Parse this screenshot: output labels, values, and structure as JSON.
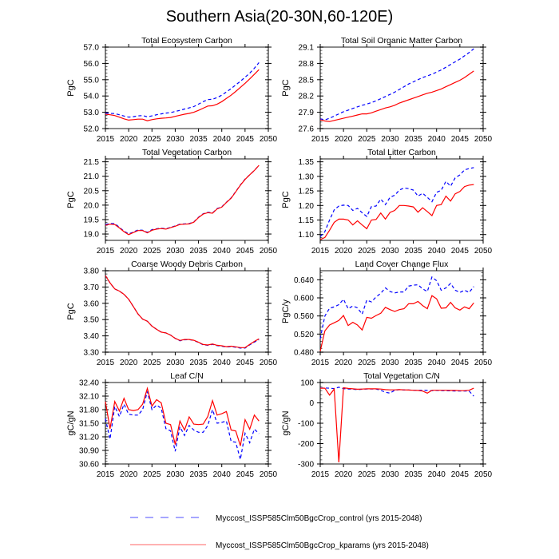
{
  "title": "Southern Asia(20-30N,60-120E)",
  "colors": {
    "control": "#0000ff",
    "kparams": "#ff0000",
    "frame": "#000000"
  },
  "legend": [
    {
      "label": "Myccost_ISSP585Clm50BgcCrop_control (yrs 2015-2048)",
      "style": "dashed",
      "color": "#0000ff"
    },
    {
      "label": "Myccost_ISSP585Clm50BgcCrop_kparams (yrs 2015-2048)",
      "style": "solid",
      "color": "#ff0000"
    }
  ],
  "chart_data": [
    {
      "type": "line",
      "title": "Total Ecosystem Carbon",
      "ylabel": "PgC",
      "xlim": [
        2015,
        2050
      ],
      "xticks": [
        2015,
        2020,
        2025,
        2030,
        2035,
        2040,
        2045,
        2050
      ],
      "ylim": [
        52.0,
        57.0
      ],
      "yticks": [
        "52.0",
        "53.0",
        "54.0",
        "55.0",
        "56.0",
        "57.0"
      ],
      "x": [
        2015,
        2016,
        2017,
        2018,
        2019,
        2020,
        2021,
        2022,
        2023,
        2024,
        2025,
        2026,
        2027,
        2028,
        2029,
        2030,
        2031,
        2032,
        2033,
        2034,
        2035,
        2036,
        2037,
        2038,
        2039,
        2040,
        2041,
        2042,
        2043,
        2044,
        2045,
        2046,
        2047,
        2048
      ],
      "series": [
        {
          "name": "control",
          "values": [
            52.95,
            52.93,
            52.92,
            52.85,
            52.77,
            52.7,
            52.73,
            52.78,
            52.8,
            52.72,
            52.78,
            52.85,
            52.9,
            52.95,
            52.98,
            53.05,
            53.12,
            53.2,
            53.27,
            53.35,
            53.5,
            53.65,
            53.78,
            53.8,
            53.9,
            54.05,
            54.25,
            54.45,
            54.68,
            54.9,
            55.15,
            55.4,
            55.7,
            56.05
          ]
        },
        {
          "name": "kparams",
          "values": [
            52.88,
            52.85,
            52.8,
            52.7,
            52.6,
            52.52,
            52.55,
            52.58,
            52.58,
            52.48,
            52.55,
            52.6,
            52.63,
            52.65,
            52.68,
            52.75,
            52.82,
            52.88,
            52.93,
            53.0,
            53.12,
            53.25,
            53.38,
            53.4,
            53.5,
            53.65,
            53.85,
            54.05,
            54.28,
            54.53,
            54.78,
            55.05,
            55.33,
            55.62
          ]
        }
      ]
    },
    {
      "type": "line",
      "title": "Total Soil Organic Matter Carbon",
      "ylabel": "PgC",
      "xlim": [
        2015,
        2050
      ],
      "xticks": [
        2015,
        2020,
        2025,
        2030,
        2035,
        2040,
        2045,
        2050
      ],
      "ylim": [
        27.6,
        29.1
      ],
      "yticks": [
        "27.6",
        "27.9",
        "28.2",
        "28.5",
        "28.8",
        "29.1"
      ],
      "x": [
        2015,
        2016,
        2017,
        2018,
        2019,
        2020,
        2021,
        2022,
        2023,
        2024,
        2025,
        2026,
        2027,
        2028,
        2029,
        2030,
        2031,
        2032,
        2033,
        2034,
        2035,
        2036,
        2037,
        2038,
        2039,
        2040,
        2041,
        2042,
        2043,
        2044,
        2045,
        2046,
        2047,
        2048
      ],
      "series": [
        {
          "name": "control",
          "values": [
            27.78,
            27.76,
            27.79,
            27.83,
            27.87,
            27.91,
            27.94,
            27.97,
            28.0,
            28.03,
            28.05,
            28.08,
            28.11,
            28.15,
            28.19,
            28.23,
            28.27,
            28.32,
            28.37,
            28.42,
            28.46,
            28.5,
            28.54,
            28.57,
            28.6,
            28.64,
            28.68,
            28.73,
            28.78,
            28.83,
            28.88,
            28.94,
            29.0,
            29.07
          ]
        },
        {
          "name": "kparams",
          "values": [
            27.76,
            27.74,
            27.73,
            27.75,
            27.77,
            27.79,
            27.81,
            27.83,
            27.85,
            27.87,
            27.87,
            27.89,
            27.92,
            27.95,
            27.98,
            28.0,
            28.03,
            28.07,
            28.1,
            28.13,
            28.16,
            28.19,
            28.22,
            28.25,
            28.27,
            28.3,
            28.33,
            28.37,
            28.41,
            28.45,
            28.49,
            28.54,
            28.6,
            28.66
          ]
        }
      ]
    },
    {
      "type": "line",
      "title": "Total Vegetation Carbon",
      "ylabel": "PgC",
      "xlim": [
        2015,
        2050
      ],
      "xticks": [
        2015,
        2020,
        2025,
        2030,
        2035,
        2040,
        2045,
        2050
      ],
      "ylim": [
        18.78,
        21.6
      ],
      "yticks": [
        "19.0",
        "19.5",
        "20.0",
        "20.5",
        "21.0",
        "21.5"
      ],
      "x": [
        2015,
        2016,
        2017,
        2018,
        2019,
        2020,
        2021,
        2022,
        2023,
        2024,
        2025,
        2026,
        2027,
        2028,
        2029,
        2030,
        2031,
        2032,
        2033,
        2034,
        2035,
        2036,
        2037,
        2038,
        2039,
        2040,
        2041,
        2042,
        2043,
        2044,
        2045,
        2046,
        2047,
        2048
      ],
      "series": [
        {
          "name": "control",
          "values": [
            19.33,
            19.36,
            19.36,
            19.23,
            19.1,
            19.0,
            19.07,
            19.14,
            19.13,
            19.06,
            19.15,
            19.18,
            19.2,
            19.18,
            19.23,
            19.28,
            19.34,
            19.35,
            19.36,
            19.42,
            19.58,
            19.7,
            19.75,
            19.73,
            19.88,
            19.94,
            20.1,
            20.25,
            20.47,
            20.7,
            20.9,
            21.05,
            21.2,
            21.38
          ]
        },
        {
          "name": "kparams",
          "values": [
            19.3,
            19.34,
            19.33,
            19.21,
            19.08,
            18.98,
            19.05,
            19.12,
            19.12,
            19.04,
            19.13,
            19.17,
            19.19,
            19.17,
            19.22,
            19.27,
            19.33,
            19.34,
            19.35,
            19.41,
            19.57,
            19.69,
            19.74,
            19.72,
            19.87,
            19.93,
            20.09,
            20.24,
            20.46,
            20.69,
            20.89,
            21.05,
            21.2,
            21.38
          ]
        }
      ]
    },
    {
      "type": "line",
      "title": "Total Litter Carbon",
      "ylabel": "PgC",
      "xlim": [
        2015,
        2050
      ],
      "xticks": [
        2015,
        2020,
        2025,
        2030,
        2035,
        2040,
        2045,
        2050
      ],
      "ylim": [
        1.08,
        1.36
      ],
      "yticks": [
        "1.10",
        "1.15",
        "1.20",
        "1.25",
        "1.30",
        "1.35"
      ],
      "x": [
        2015,
        2016,
        2017,
        2018,
        2019,
        2020,
        2021,
        2022,
        2023,
        2024,
        2025,
        2026,
        2027,
        2028,
        2029,
        2030,
        2031,
        2032,
        2033,
        2034,
        2035,
        2036,
        2037,
        2038,
        2039,
        2040,
        2041,
        2042,
        2043,
        2044,
        2045,
        2046,
        2047,
        2048
      ],
      "series": [
        {
          "name": "control",
          "values": [
            1.093,
            1.11,
            1.15,
            1.185,
            1.198,
            1.201,
            1.2,
            1.183,
            1.19,
            1.175,
            1.162,
            1.196,
            1.198,
            1.222,
            1.203,
            1.228,
            1.235,
            1.253,
            1.26,
            1.258,
            1.253,
            1.232,
            1.242,
            1.228,
            1.213,
            1.245,
            1.252,
            1.283,
            1.266,
            1.295,
            1.305,
            1.322,
            1.327,
            1.33
          ]
        },
        {
          "name": "kparams",
          "values": [
            1.083,
            1.09,
            1.115,
            1.142,
            1.153,
            1.153,
            1.15,
            1.133,
            1.147,
            1.133,
            1.12,
            1.15,
            1.152,
            1.174,
            1.153,
            1.176,
            1.183,
            1.2,
            1.2,
            1.198,
            1.195,
            1.177,
            1.192,
            1.179,
            1.165,
            1.2,
            1.203,
            1.232,
            1.215,
            1.24,
            1.248,
            1.265,
            1.27,
            1.272
          ]
        }
      ]
    },
    {
      "type": "line",
      "title": "Coarse Woody Debris Carbon",
      "ylabel": "PgC",
      "xlim": [
        2015,
        2050
      ],
      "xticks": [
        2015,
        2020,
        2025,
        2030,
        2035,
        2040,
        2045,
        2050
      ],
      "ylim": [
        3.3,
        3.8
      ],
      "yticks": [
        "3.30",
        "3.40",
        "3.50",
        "3.60",
        "3.70",
        "3.80"
      ],
      "x": [
        2015,
        2016,
        2017,
        2018,
        2019,
        2020,
        2021,
        2022,
        2023,
        2024,
        2025,
        2026,
        2027,
        2028,
        2029,
        2030,
        2031,
        2032,
        2033,
        2034,
        2035,
        2036,
        2037,
        2038,
        2039,
        2040,
        2041,
        2042,
        2043,
        2044,
        2045,
        2046,
        2047,
        2048
      ],
      "series": [
        {
          "name": "control",
          "values": [
            3.77,
            3.725,
            3.688,
            3.675,
            3.655,
            3.625,
            3.58,
            3.535,
            3.503,
            3.49,
            3.46,
            3.44,
            3.423,
            3.418,
            3.405,
            3.385,
            3.37,
            3.376,
            3.377,
            3.372,
            3.36,
            3.345,
            3.342,
            3.348,
            3.34,
            3.337,
            3.332,
            3.335,
            3.33,
            3.325,
            3.325,
            3.345,
            3.362,
            3.376
          ]
        },
        {
          "name": "kparams",
          "values": [
            3.77,
            3.725,
            3.688,
            3.675,
            3.655,
            3.625,
            3.58,
            3.535,
            3.503,
            3.49,
            3.46,
            3.44,
            3.423,
            3.418,
            3.405,
            3.385,
            3.372,
            3.378,
            3.378,
            3.373,
            3.361,
            3.347,
            3.344,
            3.35,
            3.342,
            3.339,
            3.334,
            3.337,
            3.333,
            3.328,
            3.328,
            3.348,
            3.366,
            3.382
          ]
        }
      ]
    },
    {
      "type": "line",
      "title": "Land Cover Change Flux",
      "ylabel": "PgC/y",
      "xlim": [
        2015,
        2050
      ],
      "xticks": [
        2015,
        2020,
        2025,
        2030,
        2035,
        2040,
        2045,
        2050
      ],
      "ylim": [
        0.48,
        0.66
      ],
      "yticks": [
        "0.480",
        "0.520",
        "0.560",
        "0.600",
        "0.640"
      ],
      "x": [
        2015,
        2016,
        2017,
        2018,
        2019,
        2020,
        2021,
        2022,
        2023,
        2024,
        2025,
        2026,
        2027,
        2028,
        2029,
        2030,
        2031,
        2032,
        2033,
        2034,
        2035,
        2036,
        2037,
        2038,
        2039,
        2040,
        2041,
        2042,
        2043,
        2044,
        2045,
        2046,
        2047,
        2048
      ],
      "series": [
        {
          "name": "control",
          "values": [
            0.51,
            0.56,
            0.577,
            0.58,
            0.585,
            0.597,
            0.576,
            0.582,
            0.578,
            0.564,
            0.595,
            0.591,
            0.602,
            0.61,
            0.622,
            0.614,
            0.611,
            0.613,
            0.613,
            0.626,
            0.628,
            0.629,
            0.62,
            0.614,
            0.646,
            0.638,
            0.617,
            0.622,
            0.632,
            0.617,
            0.612,
            0.617,
            0.612,
            0.625
          ]
        },
        {
          "name": "kparams",
          "values": [
            0.482,
            0.527,
            0.54,
            0.545,
            0.55,
            0.561,
            0.539,
            0.546,
            0.54,
            0.529,
            0.557,
            0.555,
            0.561,
            0.566,
            0.579,
            0.574,
            0.57,
            0.574,
            0.576,
            0.587,
            0.587,
            0.592,
            0.583,
            0.576,
            0.605,
            0.598,
            0.577,
            0.578,
            0.59,
            0.578,
            0.573,
            0.58,
            0.576,
            0.589
          ]
        }
      ]
    },
    {
      "type": "line",
      "title": "Leaf C/N",
      "ylabel": "gC/gN",
      "xlim": [
        2015,
        2050
      ],
      "xticks": [
        2015,
        2020,
        2025,
        2030,
        2035,
        2040,
        2045,
        2050
      ],
      "ylim": [
        30.6,
        32.4
      ],
      "yticks": [
        "30.60",
        "30.90",
        "31.20",
        "31.50",
        "31.80",
        "32.10",
        "32.40"
      ],
      "x": [
        2015,
        2016,
        2017,
        2018,
        2019,
        2020,
        2021,
        2022,
        2023,
        2024,
        2025,
        2026,
        2027,
        2028,
        2029,
        2030,
        2031,
        2032,
        2033,
        2034,
        2035,
        2036,
        2037,
        2038,
        2039,
        2040,
        2041,
        2042,
        2043,
        2044,
        2045,
        2046,
        2047,
        2048
      ],
      "series": [
        {
          "name": "control",
          "values": [
            31.6,
            31.15,
            31.87,
            31.65,
            31.92,
            31.7,
            31.68,
            31.68,
            31.8,
            32.2,
            31.8,
            31.9,
            31.83,
            31.38,
            31.33,
            30.88,
            31.42,
            31.23,
            31.45,
            31.35,
            31.3,
            31.3,
            31.45,
            31.8,
            31.5,
            31.52,
            31.55,
            31.1,
            31.08,
            30.7,
            31.28,
            31.07,
            31.37,
            31.27
          ]
        },
        {
          "name": "kparams",
          "values": [
            31.98,
            31.38,
            31.98,
            31.77,
            32.05,
            31.8,
            31.78,
            31.8,
            31.92,
            32.27,
            31.88,
            32.02,
            31.95,
            31.5,
            31.47,
            31.03,
            31.55,
            31.35,
            31.64,
            31.48,
            31.47,
            31.48,
            31.65,
            32.0,
            31.68,
            31.71,
            31.76,
            31.35,
            31.33,
            31.0,
            31.58,
            31.37,
            31.68,
            31.55
          ]
        }
      ]
    },
    {
      "type": "line",
      "title": "Total Vegetation C/N",
      "ylabel": "gC/gN",
      "xlim": [
        2015,
        2050
      ],
      "xticks": [
        2015,
        2020,
        2025,
        2030,
        2035,
        2040,
        2045,
        2050
      ],
      "ylim": [
        -300,
        100
      ],
      "yticks": [
        "-300",
        "-200",
        "-100",
        "0",
        "100"
      ],
      "x": [
        2015,
        2016,
        2017,
        2018,
        2019,
        2020,
        2021,
        2022,
        2023,
        2024,
        2025,
        2026,
        2027,
        2028,
        2029,
        2030,
        2031,
        2032,
        2033,
        2034,
        2035,
        2036,
        2037,
        2038,
        2039,
        2040,
        2041,
        2042,
        2043,
        2044,
        2045,
        2046,
        2047,
        2048
      ],
      "series": [
        {
          "name": "control",
          "values": [
            73,
            73,
            72,
            70,
            77,
            70,
            68,
            67,
            65,
            67,
            68,
            68,
            68,
            62,
            52,
            48,
            62,
            65,
            63,
            63,
            62,
            62,
            62,
            61,
            60,
            61,
            60,
            60,
            59,
            58,
            58,
            58,
            58,
            33
          ]
        },
        {
          "name": "kparams",
          "values": [
            72,
            72,
            38,
            68,
            -292,
            74,
            71,
            69,
            67,
            68,
            69,
            69,
            69,
            68,
            65,
            64,
            64,
            65,
            64,
            63,
            62,
            61,
            58,
            48,
            62,
            62,
            62,
            62,
            61,
            61,
            60,
            60,
            62,
            72
          ]
        }
      ]
    }
  ]
}
